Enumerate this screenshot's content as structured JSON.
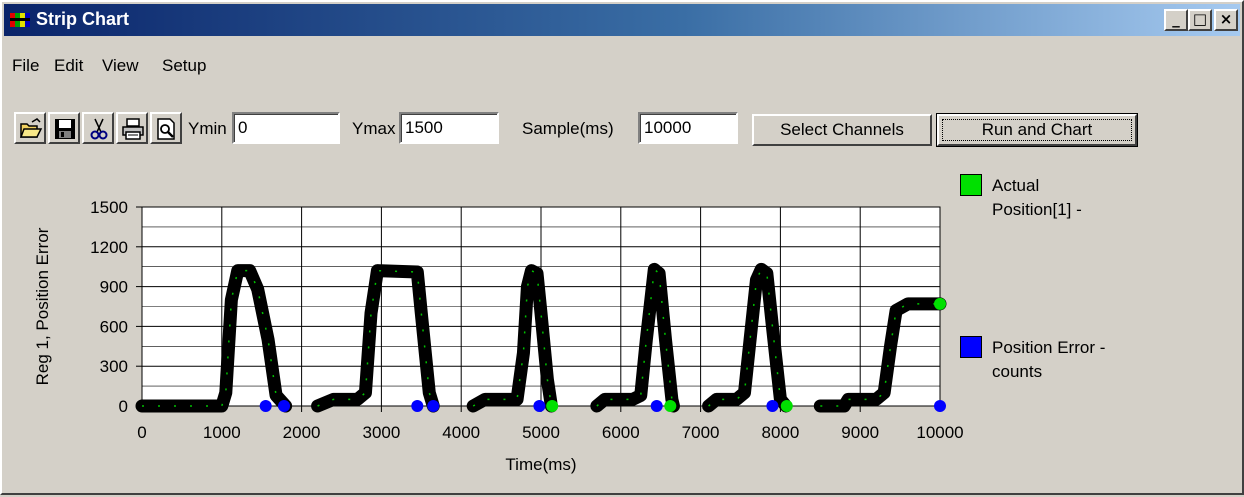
{
  "window": {
    "title": "Strip Chart",
    "min_label": "_",
    "max_label": "□",
    "close_label": "×"
  },
  "menu": [
    "File",
    "Edit",
    "View",
    "Setup"
  ],
  "toolbar": {
    "icons": [
      "open-folder-icon",
      "save-disk-icon",
      "cut-scissors-icon",
      "print-icon",
      "print-preview-icon"
    ],
    "ymin_label": "Ymin",
    "ymin_value": "0",
    "ymax_label": "Ymax",
    "ymax_value": "1500",
    "sample_label": "Sample(ms)",
    "sample_value": "10000",
    "select_channels": "Select Channels",
    "run_and_chart": "Run and Chart"
  },
  "legend": [
    {
      "label_line1": "Actual",
      "label_line2": "Position[1] -",
      "color": "#00e000"
    },
    {
      "label_line1": "Position Error -",
      "label_line2": "counts",
      "color": "#0000ff"
    }
  ],
  "chart_data": {
    "type": "line",
    "xlabel": "Time(ms)",
    "ylabel": "Reg 1, Position Error",
    "xlim": [
      0,
      10000
    ],
    "ylim": [
      0,
      1500
    ],
    "xticks": [
      0,
      1000,
      2000,
      3000,
      4000,
      5000,
      6000,
      7000,
      8000,
      9000,
      10000
    ],
    "yticks": [
      0,
      300,
      600,
      900,
      1200,
      1500
    ],
    "grid": true,
    "series": [
      {
        "name": "Actual Position[1] -",
        "color": "#000000",
        "segments": [
          [
            [
              0,
              0
            ],
            [
              1000,
              0
            ],
            [
              1050,
              100
            ],
            [
              1120,
              800
            ],
            [
              1200,
              1020
            ],
            [
              1350,
              1020
            ],
            [
              1450,
              880
            ],
            [
              1580,
              500
            ],
            [
              1680,
              80
            ],
            [
              1800,
              0
            ]
          ],
          [
            [
              2200,
              0
            ],
            [
              2400,
              50
            ],
            [
              2700,
              50
            ],
            [
              2800,
              100
            ],
            [
              2870,
              700
            ],
            [
              2950,
              1020
            ],
            [
              3450,
              1010
            ],
            [
              3500,
              700
            ],
            [
              3600,
              100
            ],
            [
              3650,
              0
            ]
          ],
          [
            [
              4150,
              0
            ],
            [
              4300,
              50
            ],
            [
              4700,
              50
            ],
            [
              4780,
              400
            ],
            [
              4830,
              900
            ],
            [
              4880,
              1020
            ],
            [
              4950,
              1000
            ],
            [
              5000,
              700
            ],
            [
              5080,
              200
            ],
            [
              5130,
              0
            ]
          ],
          [
            [
              5700,
              0
            ],
            [
              5800,
              50
            ],
            [
              6150,
              50
            ],
            [
              6250,
              80
            ],
            [
              6320,
              500
            ],
            [
              6420,
              1030
            ],
            [
              6480,
              1000
            ],
            [
              6560,
              500
            ],
            [
              6640,
              50
            ],
            [
              6660,
              0
            ]
          ],
          [
            [
              7100,
              0
            ],
            [
              7200,
              50
            ],
            [
              7450,
              50
            ],
            [
              7550,
              100
            ],
            [
              7620,
              500
            ],
            [
              7700,
              950
            ],
            [
              7760,
              1030
            ],
            [
              7830,
              1000
            ],
            [
              7900,
              600
            ],
            [
              8000,
              50
            ],
            [
              8070,
              0
            ]
          ],
          [
            [
              8500,
              0
            ],
            [
              8800,
              0
            ],
            [
              8850,
              50
            ],
            [
              9200,
              50
            ],
            [
              9300,
              100
            ],
            [
              9380,
              450
            ],
            [
              9450,
              720
            ],
            [
              9600,
              770
            ],
            [
              10000,
              770
            ]
          ]
        ]
      },
      {
        "name": "Position Error - counts",
        "color": "#0000ff",
        "points": [
          [
            1550,
            0
          ],
          [
            1780,
            0
          ],
          [
            3450,
            0
          ],
          [
            3650,
            0
          ],
          [
            4980,
            0
          ],
          [
            6450,
            0
          ],
          [
            7900,
            0
          ],
          [
            10000,
            0
          ]
        ]
      },
      {
        "name": "Actual Position marker",
        "color": "#00e000",
        "points": [
          [
            5140,
            0
          ],
          [
            6620,
            0
          ],
          [
            8080,
            0
          ],
          [
            10000,
            770
          ]
        ]
      }
    ]
  }
}
